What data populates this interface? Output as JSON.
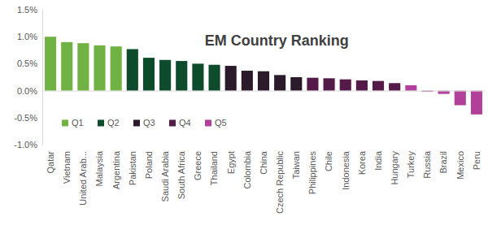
{
  "chart_data": {
    "type": "bar",
    "title": "EM Country Ranking",
    "categories": [
      "Qatar",
      "Vietnam",
      "United Arab...",
      "Malaysia",
      "Argentina",
      "Pakistan",
      "Poland",
      "Saudi Arabia",
      "South Africa",
      "Greece",
      "Thailand",
      "Egypt",
      "Colombia",
      "China",
      "Czech Republic",
      "Taiwan",
      "Philippines",
      "Chile",
      "Indonesia",
      "Korea",
      "India",
      "Hungary",
      "Turkey",
      "Russia",
      "Brazil",
      "Mexico",
      "Peru"
    ],
    "series": [
      {
        "name": "Q1",
        "color": "#70b244",
        "values": [
          1.0,
          0.9,
          0.88,
          0.84,
          0.82,
          null,
          null,
          null,
          null,
          null,
          null,
          null,
          null,
          null,
          null,
          null,
          null,
          null,
          null,
          null,
          null,
          null,
          null,
          null,
          null,
          null,
          null
        ]
      },
      {
        "name": "Q2",
        "color": "#0e4a2c",
        "values": [
          null,
          null,
          null,
          null,
          null,
          0.77,
          0.61,
          0.57,
          0.55,
          0.5,
          0.48,
          null,
          null,
          null,
          null,
          null,
          null,
          null,
          null,
          null,
          null,
          null,
          null,
          null,
          null,
          null,
          null
        ]
      },
      {
        "name": "Q3",
        "color": "#2b1a29",
        "values": [
          null,
          null,
          null,
          null,
          null,
          null,
          null,
          null,
          null,
          null,
          null,
          0.46,
          0.37,
          0.36,
          0.29,
          0.25,
          null,
          null,
          null,
          null,
          null,
          null,
          null,
          null,
          null,
          null,
          null
        ]
      },
      {
        "name": "Q4",
        "color": "#541a48",
        "values": [
          null,
          null,
          null,
          null,
          null,
          null,
          null,
          null,
          null,
          null,
          null,
          null,
          null,
          null,
          null,
          null,
          0.24,
          0.23,
          0.21,
          0.19,
          0.18,
          0.14,
          null,
          null,
          null,
          null,
          null
        ]
      },
      {
        "name": "Q5",
        "color": "#b0409a",
        "values": [
          null,
          null,
          null,
          null,
          null,
          null,
          null,
          null,
          null,
          null,
          null,
          null,
          null,
          null,
          null,
          null,
          null,
          null,
          null,
          null,
          null,
          null,
          0.1,
          -0.02,
          -0.06,
          -0.27,
          -0.44
        ]
      }
    ],
    "ylim": [
      -1.0,
      1.5
    ],
    "yticks": [
      {
        "value": -1.0,
        "label": "-1.0%"
      },
      {
        "value": -0.5,
        "label": "-0.5%"
      },
      {
        "value": 0.0,
        "label": "0.0%"
      },
      {
        "value": 0.5,
        "label": "0.5%"
      },
      {
        "value": 1.0,
        "label": "1.0%"
      },
      {
        "value": 1.5,
        "label": "1.5%"
      }
    ],
    "grid": false,
    "legend": "bottom-left"
  }
}
